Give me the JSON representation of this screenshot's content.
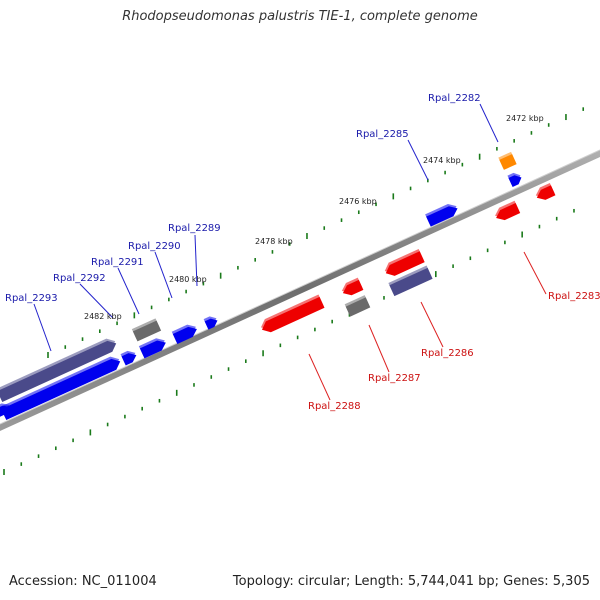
{
  "title": "Rhodopseudomonas palustris TIE-1, complete genome",
  "footer": {
    "accession": "Accession: NC_011004",
    "stats": "Topology: circular; Length: 5,744,041 bp; Genes: 5,305"
  },
  "scale_labels": [
    "2472 kbp",
    "2474 kbp",
    "2476 kbp",
    "2478 kbp",
    "2480 kbp",
    "2482 kbp"
  ],
  "genes": {
    "forward": [
      "Rpal_2293",
      "Rpal_2292",
      "Rpal_2291",
      "Rpal_2290",
      "Rpal_2289",
      "Rpal_2285",
      "Rpal_2282"
    ],
    "reverse": [
      "Rpal_2288",
      "Rpal_2287",
      "Rpal_2286",
      "Rpal_2283"
    ]
  },
  "colors": {
    "forward_label": "#1a1aaa",
    "reverse_label": "#cc1111",
    "cds_blue": "#0000ee",
    "cds_red": "#ee0000",
    "cds_purple": "#4a4a8a",
    "cds_gray": "#6a6a6a",
    "cds_orange": "#ff8800",
    "tick_green": "#1a7a1a",
    "backbone": "#888888"
  }
}
